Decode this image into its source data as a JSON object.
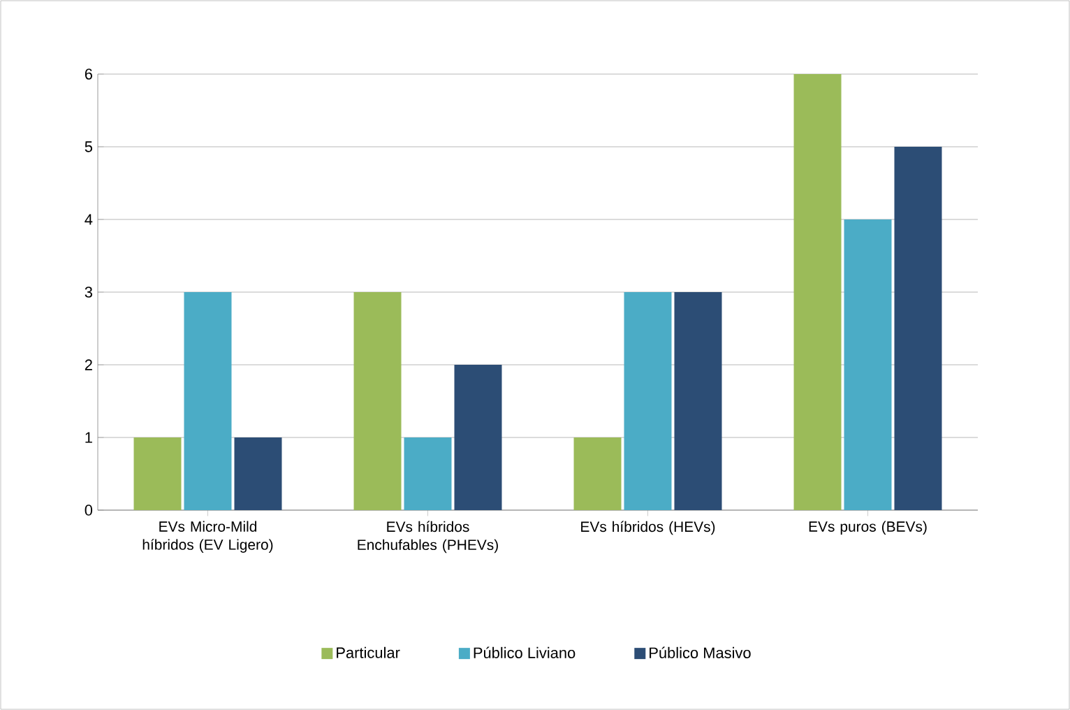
{
  "chart_data": {
    "type": "bar",
    "categories": [
      "EVs Micro-Mild híbridos (EV Ligero)",
      "EVs híbridos Enchufables (PHEVs)",
      "EVs híbridos (HEVs)",
      "EVs puros (BEVs)"
    ],
    "series": [
      {
        "name": "Particular",
        "color": "#9bbb59",
        "values": [
          1,
          3,
          1,
          6
        ]
      },
      {
        "name": "Público Liviano",
        "color": "#4bacc6",
        "values": [
          3,
          1,
          3,
          4
        ]
      },
      {
        "name": "Público Masivo",
        "color": "#2c4d75",
        "values": [
          1,
          2,
          3,
          5
        ]
      }
    ],
    "ylim": [
      0,
      6
    ],
    "yticks": [
      0,
      1,
      2,
      3,
      4,
      5,
      6
    ],
    "grid": "y",
    "legend": "bottom"
  }
}
